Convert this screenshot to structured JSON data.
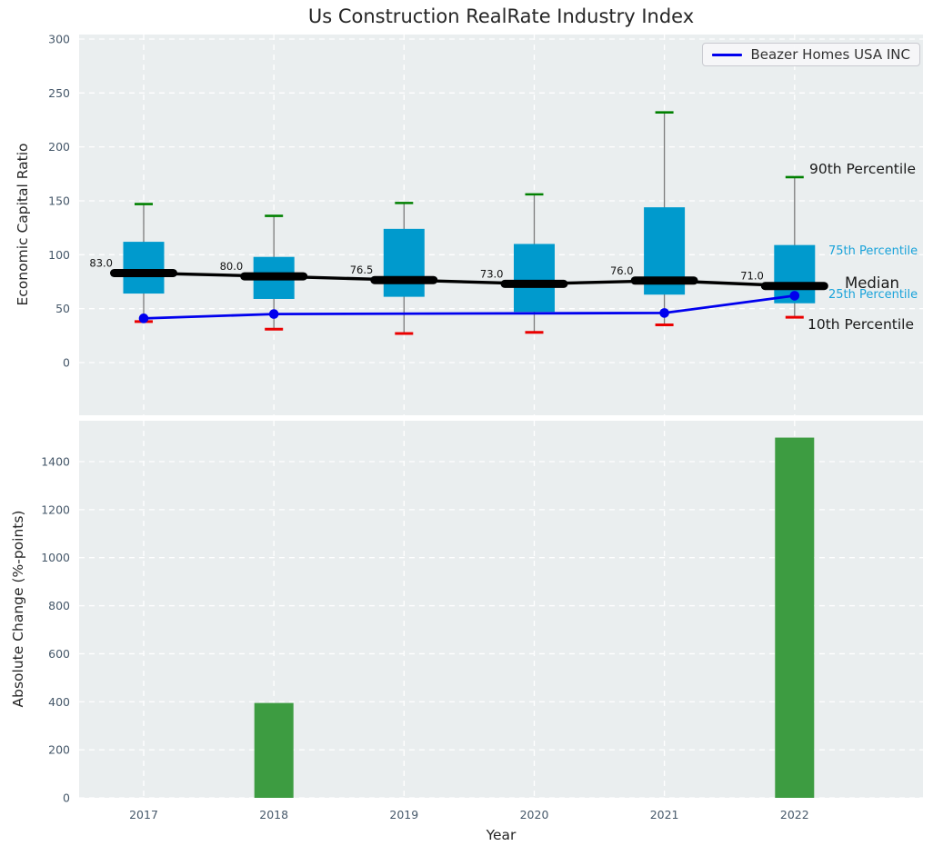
{
  "title": "Us Construction RealRate Industry Index",
  "legend": {
    "label": "Beazer Homes USA INC",
    "line_color": "#0000ee"
  },
  "xlabel": "Year",
  "colors": {
    "plot_bg": "#eaeeef",
    "grid": "#ffffff",
    "tick_label": "#46586a",
    "box_fill": "#009acd",
    "whisker": "#7a7a7a",
    "cap_top_green": "#008000",
    "cap_bottom_red": "#ea0000",
    "median_black": "#000000",
    "company_blue": "#0000ee",
    "bar_green": "#3d9c41",
    "annotation_cyan": "#1aa3da",
    "annotation_dark": "#1a1a1a",
    "median_value_text": "#111111"
  },
  "percentile_labels": {
    "p90": "90th Percentile",
    "p75": "75th Percentile",
    "median": "Median",
    "p25": "25th Percentile",
    "p10": "10th Percentile"
  },
  "chart_data": [
    {
      "type": "box",
      "title": "Us Construction RealRate Industry Index",
      "ylabel": "Economic Capital Ratio",
      "categories": [
        "2017",
        "2018",
        "2019",
        "2020",
        "2021",
        "2022"
      ],
      "yticks": [
        0,
        50,
        100,
        150,
        200,
        250,
        300
      ],
      "ylim": [
        -50,
        305
      ],
      "grid": true,
      "legend_position": "upper right",
      "boxes": [
        {
          "year": "2017",
          "p10": 38,
          "p25": 64,
          "median": 83.0,
          "p75": 112,
          "p90": 147
        },
        {
          "year": "2018",
          "p10": 31,
          "p25": 59,
          "median": 80.0,
          "p75": 98,
          "p90": 136
        },
        {
          "year": "2019",
          "p10": 27,
          "p25": 61,
          "median": 76.5,
          "p75": 124,
          "p90": 148
        },
        {
          "year": "2020",
          "p10": 28,
          "p25": 47,
          "median": 73.0,
          "p75": 110,
          "p90": 156
        },
        {
          "year": "2021",
          "p10": 35,
          "p25": 63,
          "median": 76.0,
          "p75": 144,
          "p90": 232
        },
        {
          "year": "2022",
          "p10": 42,
          "p25": 55,
          "median": 71.0,
          "p75": 109,
          "p90": 172
        }
      ],
      "median_labels": [
        "83.0",
        "80.0",
        "76.5",
        "73.0",
        "76.0",
        "71.0"
      ],
      "series": [
        {
          "name": "Beazer Homes USA INC",
          "x": [
            "2017",
            "2018",
            "2021",
            "2022"
          ],
          "values": [
            41,
            45,
            46,
            62
          ],
          "markers": true
        }
      ]
    },
    {
      "type": "bar",
      "ylabel": "Absolute Change (%-points)",
      "xlabel": "Year",
      "categories": [
        "2017",
        "2018",
        "2019",
        "2020",
        "2021",
        "2022"
      ],
      "values": [
        0,
        395,
        0,
        0,
        0,
        1500
      ],
      "yticks": [
        0,
        200,
        400,
        600,
        800,
        1000,
        1200,
        1400
      ],
      "ylim": [
        0,
        1570
      ],
      "grid": true
    }
  ]
}
